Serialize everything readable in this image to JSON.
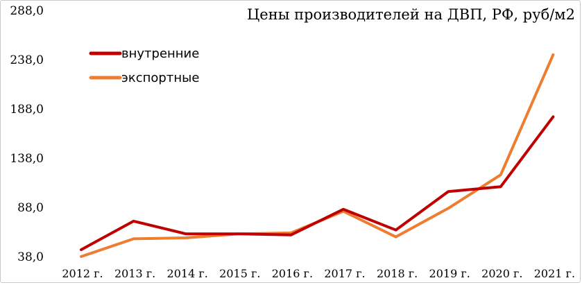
{
  "chart_data": {
    "type": "line",
    "title": "Цены производителей на ДВП, РФ, руб/м2",
    "categories": [
      "2012 г.",
      "2013 г.",
      "2014 г.",
      "2015 г.",
      "2016 г.",
      "2017 г.",
      "2018 г.",
      "2019 г.",
      "2020 г.",
      "2021 г."
    ],
    "y_ticks": [
      "38,0",
      "88,0",
      "138,0",
      "188,0",
      "238,0",
      "288,0"
    ],
    "ylim": [
      38,
      288
    ],
    "grid": false,
    "legend": "top-left",
    "series": [
      {
        "name": "внутренние",
        "color": "#C00000",
        "values": [
          45,
          74,
          61,
          61,
          60,
          86,
          65,
          104,
          109,
          180
        ]
      },
      {
        "name": "экспортные",
        "color": "#ED7D31",
        "values": [
          38,
          56,
          57,
          61,
          62,
          84,
          58,
          87,
          121,
          243
        ]
      }
    ]
  }
}
